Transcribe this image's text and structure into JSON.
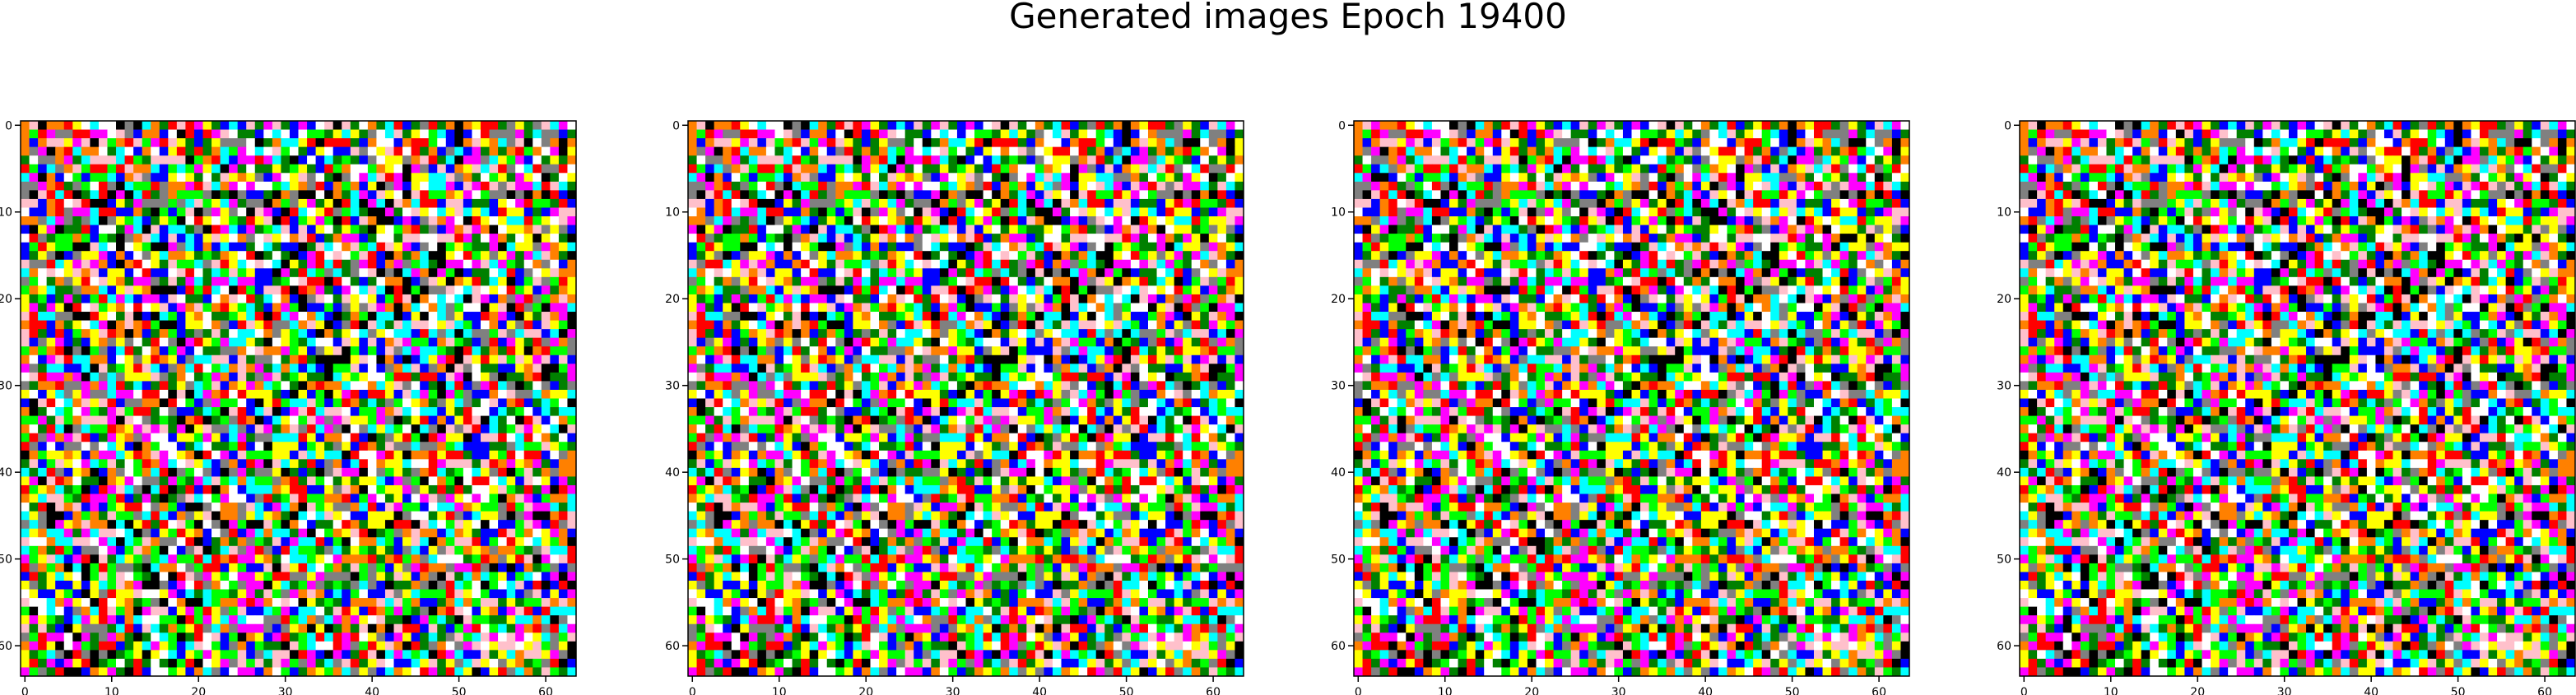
{
  "figure": {
    "title": "Generated images Epoch 19400"
  },
  "palette": [
    "#ffffff",
    "#000000",
    "#ff0000",
    "#00ff00",
    "#0000ff",
    "#ffff00",
    "#00ffff",
    "#ff00ff",
    "#808080",
    "#ff8000",
    "#008000",
    "#ffc0cb"
  ],
  "chart_data": [
    {
      "type": "heatmap",
      "title": "",
      "xlabel": "",
      "ylabel": "",
      "grid_size": [
        64,
        64
      ],
      "xlim": [
        -0.5,
        63.5
      ],
      "ylim": [
        63.5,
        -0.5
      ],
      "xticks": [
        0,
        10,
        20,
        30,
        40,
        50,
        60
      ],
      "yticks": [
        0,
        10,
        20,
        30,
        40,
        50,
        60
      ],
      "grid": false
    },
    {
      "type": "heatmap",
      "title": "",
      "xlabel": "",
      "ylabel": "",
      "grid_size": [
        64,
        64
      ],
      "xlim": [
        -0.5,
        63.5
      ],
      "ylim": [
        63.5,
        -0.5
      ],
      "xticks": [
        0,
        10,
        20,
        30,
        40,
        50,
        60
      ],
      "yticks": [
        0,
        10,
        20,
        30,
        40,
        50,
        60
      ],
      "grid": false
    },
    {
      "type": "heatmap",
      "title": "",
      "xlabel": "",
      "ylabel": "",
      "grid_size": [
        64,
        64
      ],
      "xlim": [
        -0.5,
        63.5
      ],
      "ylim": [
        63.5,
        -0.5
      ],
      "xticks": [
        0,
        10,
        20,
        30,
        40,
        50,
        60
      ],
      "yticks": [
        0,
        10,
        20,
        30,
        40,
        50,
        60
      ],
      "grid": false
    },
    {
      "type": "heatmap",
      "title": "",
      "xlabel": "",
      "ylabel": "",
      "grid_size": [
        64,
        64
      ],
      "xlim": [
        -0.5,
        63.5
      ],
      "ylim": [
        63.5,
        -0.5
      ],
      "xticks": [
        0,
        10,
        20,
        30,
        40,
        50,
        60
      ],
      "yticks": [
        0,
        10,
        20,
        30,
        40,
        50,
        60
      ],
      "grid": false
    }
  ]
}
